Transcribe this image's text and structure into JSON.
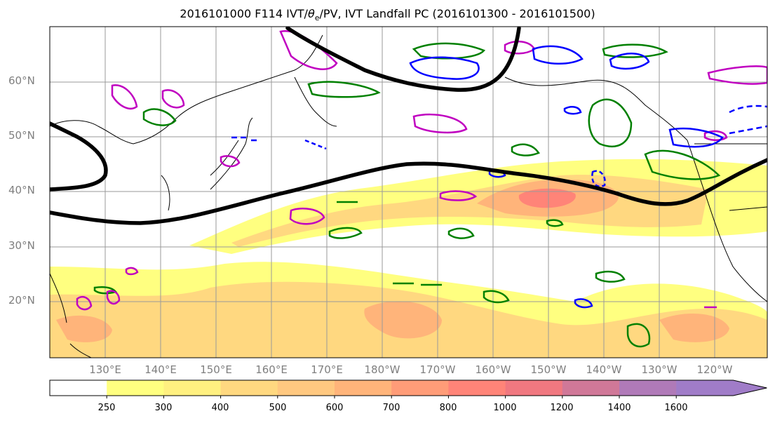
{
  "title": {
    "prefix": "2016101000 F114 IVT/",
    "theta": "θ",
    "theta_sub": "e",
    "suffix": "/PV, IVT Landfall PC (2016101300 - 2016101500)"
  },
  "lat_labels": [
    "60°N",
    "50°N",
    "40°N",
    "30°N",
    "20°N"
  ],
  "lon_labels": [
    "130°E",
    "140°E",
    "150°E",
    "160°E",
    "170°E",
    "180°W",
    "170°W",
    "160°W",
    "150°W",
    "140°W",
    "130°W",
    "120°W"
  ],
  "colorbar": {
    "ticks": [
      "250",
      "300",
      "400",
      "500",
      "600",
      "700",
      "800",
      "1000",
      "1200",
      "1400",
      "1600"
    ],
    "colors": [
      "#ffffff",
      "#ffff80",
      "#fff080",
      "#ffd880",
      "#ffc880",
      "#ffb47a",
      "#ff9c78",
      "#ff8478",
      "#f07880",
      "#d07898",
      "#b07ab8",
      "#a07cc8"
    ]
  },
  "map_colors": {
    "ivt_light": "#ffff80",
    "ivt_mid": "#ffd880",
    "ivt_high": "#ffb47a",
    "ivt_max": "#ff8478",
    "theta_contour": "#008000",
    "pv_positive": "#c000c0",
    "pv_negative": "#0000ff",
    "jet_line": "#000000"
  }
}
